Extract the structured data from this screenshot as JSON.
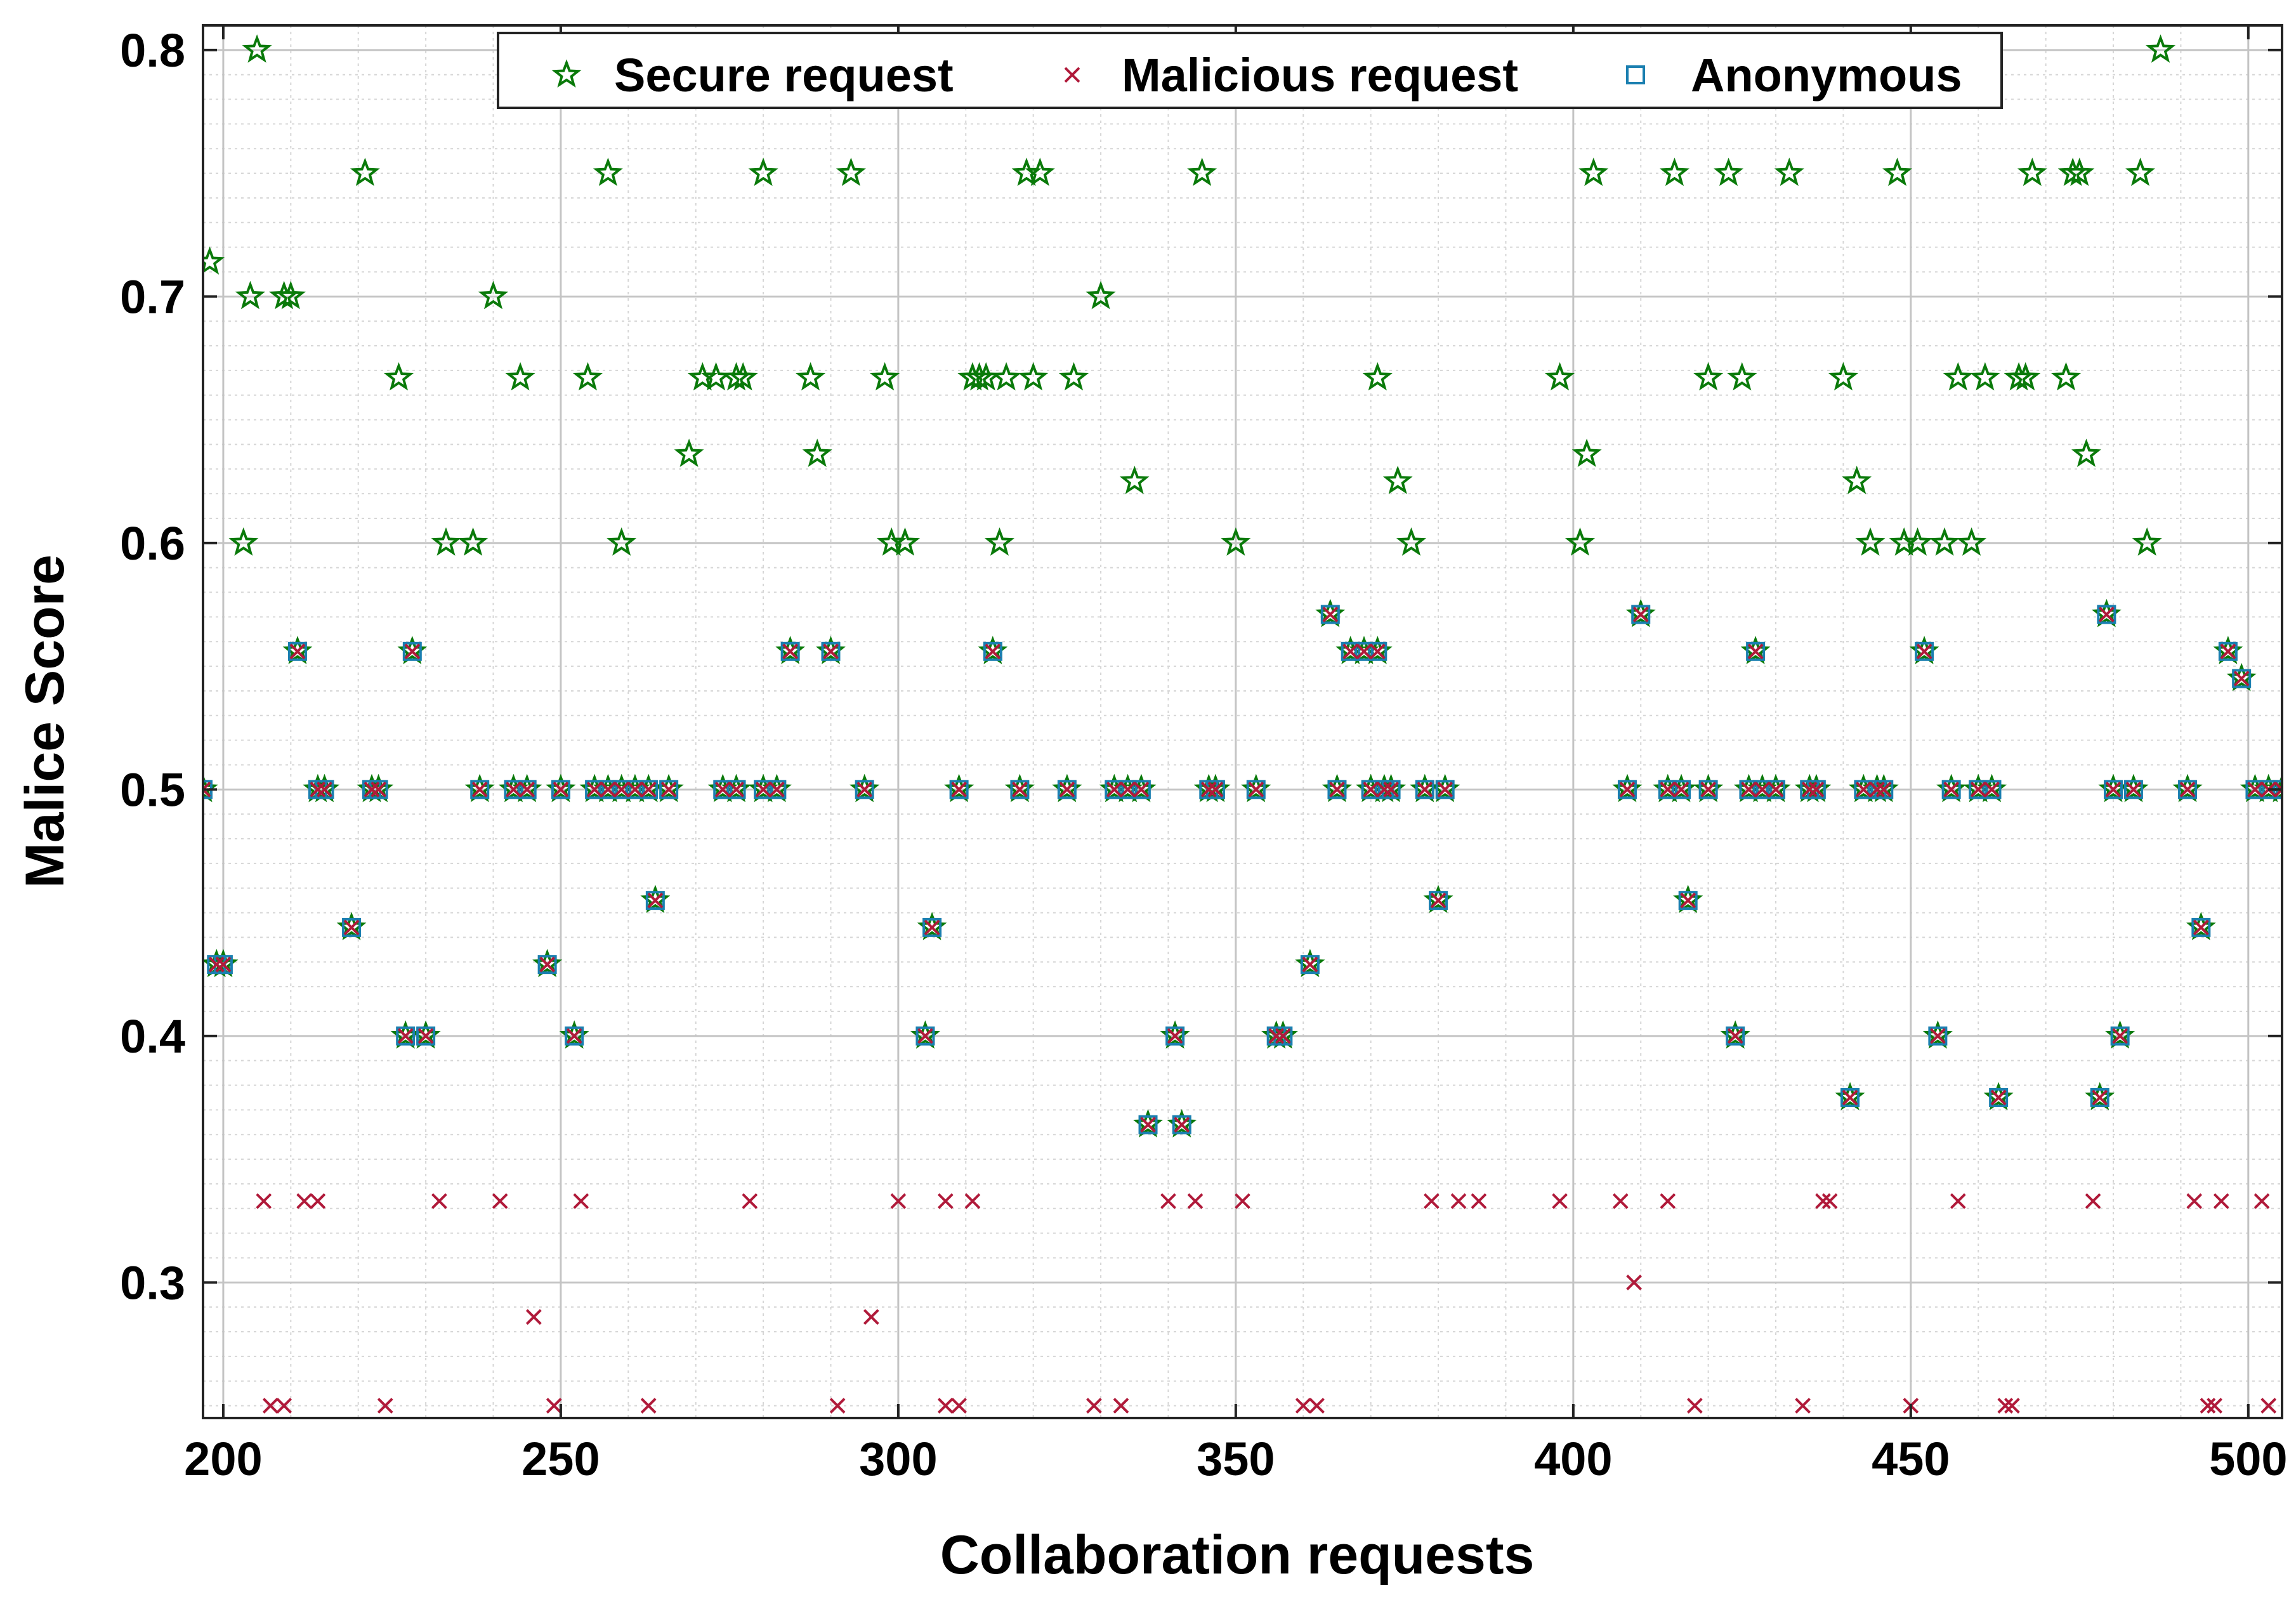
{
  "chart_data": {
    "type": "scatter",
    "title": "",
    "xlabel": "Collaboration requests",
    "ylabel": "Malice Score",
    "xlim": [
      197,
      505
    ],
    "ylim": [
      0.245,
      0.81
    ],
    "xticks": [
      200,
      250,
      300,
      350,
      400,
      450,
      500
    ],
    "yticks": [
      0.3,
      0.4,
      0.5,
      0.6,
      0.7,
      0.8
    ],
    "xtick_labels": [
      "200",
      "250",
      "300",
      "350",
      "400",
      "450",
      "500"
    ],
    "ytick_labels": [
      "0.3",
      "0.4",
      "0.5",
      "0.6",
      "0.7",
      "0.8"
    ],
    "grid": true,
    "legend_position": "top-center",
    "colors": {
      "secure": "#0a7a0a",
      "malicious": "#b01a3a",
      "anonymous": "#1a7fb0"
    },
    "series": [
      {
        "name": "Secure request",
        "marker": "star",
        "points": [
          [
            198,
            0.714
          ],
          [
            204,
            0.7
          ],
          [
            205,
            0.8
          ],
          [
            203,
            0.6
          ],
          [
            209,
            0.7
          ],
          [
            210,
            0.7
          ],
          [
            221,
            0.75
          ],
          [
            226,
            0.667
          ],
          [
            233,
            0.6
          ],
          [
            237,
            0.6
          ],
          [
            240,
            0.7
          ],
          [
            244,
            0.667
          ],
          [
            254,
            0.667
          ],
          [
            257,
            0.75
          ],
          [
            259,
            0.6
          ],
          [
            269,
            0.636
          ],
          [
            271,
            0.667
          ],
          [
            273,
            0.667
          ],
          [
            276,
            0.667
          ],
          [
            277,
            0.667
          ],
          [
            280,
            0.75
          ],
          [
            287,
            0.667
          ],
          [
            288,
            0.636
          ],
          [
            293,
            0.75
          ],
          [
            298,
            0.667
          ],
          [
            299,
            0.6
          ],
          [
            301,
            0.6
          ],
          [
            311,
            0.667
          ],
          [
            312,
            0.667
          ],
          [
            313,
            0.667
          ],
          [
            315,
            0.6
          ],
          [
            316,
            0.667
          ],
          [
            319,
            0.75
          ],
          [
            320,
            0.667
          ],
          [
            321,
            0.75
          ],
          [
            326,
            0.667
          ],
          [
            330,
            0.7
          ],
          [
            335,
            0.625
          ],
          [
            345,
            0.75
          ],
          [
            350,
            0.6
          ],
          [
            371,
            0.667
          ],
          [
            374,
            0.625
          ],
          [
            376,
            0.6
          ],
          [
            398,
            0.667
          ],
          [
            401,
            0.6
          ],
          [
            402,
            0.636
          ],
          [
            403,
            0.75
          ],
          [
            415,
            0.75
          ],
          [
            420,
            0.667
          ],
          [
            423,
            0.75
          ],
          [
            425,
            0.667
          ],
          [
            432,
            0.75
          ],
          [
            440,
            0.667
          ],
          [
            442,
            0.625
          ],
          [
            444,
            0.6
          ],
          [
            448,
            0.75
          ],
          [
            449,
            0.6
          ],
          [
            451,
            0.6
          ],
          [
            455,
            0.6
          ],
          [
            457,
            0.667
          ],
          [
            459,
            0.6
          ],
          [
            461,
            0.667
          ],
          [
            466,
            0.667
          ],
          [
            467,
            0.667
          ],
          [
            468,
            0.75
          ],
          [
            473,
            0.667
          ],
          [
            474,
            0.75
          ],
          [
            475,
            0.75
          ],
          [
            476,
            0.636
          ],
          [
            484,
            0.75
          ],
          [
            485,
            0.6
          ],
          [
            487,
            0.8
          ]
        ]
      },
      {
        "name": "Malicious request",
        "marker": "x",
        "points": [
          [
            206,
            0.333
          ],
          [
            207,
            0.25
          ],
          [
            209,
            0.25
          ],
          [
            212,
            0.333
          ],
          [
            214,
            0.333
          ],
          [
            224,
            0.25
          ],
          [
            232,
            0.333
          ],
          [
            241,
            0.333
          ],
          [
            246,
            0.286
          ],
          [
            249,
            0.25
          ],
          [
            253,
            0.333
          ],
          [
            263,
            0.25
          ],
          [
            278,
            0.333
          ],
          [
            291,
            0.25
          ],
          [
            296,
            0.286
          ],
          [
            300,
            0.333
          ],
          [
            307,
            0.333
          ],
          [
            307,
            0.25
          ],
          [
            309,
            0.25
          ],
          [
            311,
            0.333
          ],
          [
            329,
            0.25
          ],
          [
            333,
            0.25
          ],
          [
            340,
            0.333
          ],
          [
            344,
            0.333
          ],
          [
            351,
            0.333
          ],
          [
            360,
            0.25
          ],
          [
            362,
            0.25
          ],
          [
            379,
            0.333
          ],
          [
            383,
            0.333
          ],
          [
            386,
            0.333
          ],
          [
            398,
            0.333
          ],
          [
            407,
            0.333
          ],
          [
            409,
            0.3
          ],
          [
            414,
            0.333
          ],
          [
            418,
            0.25
          ],
          [
            434,
            0.25
          ],
          [
            437,
            0.333
          ],
          [
            438,
            0.333
          ],
          [
            450,
            0.25
          ],
          [
            457,
            0.333
          ],
          [
            464,
            0.25
          ],
          [
            465,
            0.25
          ],
          [
            477,
            0.333
          ],
          [
            492,
            0.333
          ],
          [
            494,
            0.25
          ],
          [
            495,
            0.25
          ],
          [
            496,
            0.333
          ],
          [
            502,
            0.333
          ],
          [
            503,
            0.25
          ]
        ]
      },
      {
        "name": "Anonymous",
        "marker": "square",
        "points": [
          [
            197,
            0.5
          ],
          [
            199,
            0.429
          ],
          [
            200,
            0.429
          ],
          [
            211,
            0.556
          ],
          [
            214,
            0.5
          ],
          [
            215,
            0.5
          ],
          [
            219,
            0.444
          ],
          [
            222,
            0.5
          ],
          [
            223,
            0.5
          ],
          [
            227,
            0.4
          ],
          [
            228,
            0.556
          ],
          [
            230,
            0.4
          ],
          [
            238,
            0.5
          ],
          [
            243,
            0.5
          ],
          [
            245,
            0.5
          ],
          [
            248,
            0.429
          ],
          [
            250,
            0.5
          ],
          [
            252,
            0.4
          ],
          [
            255,
            0.5
          ],
          [
            257,
            0.5
          ],
          [
            259,
            0.5
          ],
          [
            261,
            0.5
          ],
          [
            263,
            0.5
          ],
          [
            264,
            0.455
          ],
          [
            266,
            0.5
          ],
          [
            274,
            0.5
          ],
          [
            276,
            0.5
          ],
          [
            280,
            0.5
          ],
          [
            282,
            0.5
          ],
          [
            284,
            0.556
          ],
          [
            290,
            0.556
          ],
          [
            295,
            0.5
          ],
          [
            304,
            0.4
          ],
          [
            305,
            0.444
          ],
          [
            309,
            0.5
          ],
          [
            314,
            0.556
          ],
          [
            318,
            0.5
          ],
          [
            325,
            0.5
          ],
          [
            332,
            0.5
          ],
          [
            334,
            0.5
          ],
          [
            336,
            0.5
          ],
          [
            337,
            0.364
          ],
          [
            341,
            0.4
          ],
          [
            342,
            0.364
          ],
          [
            346,
            0.5
          ],
          [
            347,
            0.5
          ],
          [
            353,
            0.5
          ],
          [
            356,
            0.4
          ],
          [
            357,
            0.4
          ],
          [
            361,
            0.429
          ],
          [
            364,
            0.571
          ],
          [
            365,
            0.5
          ],
          [
            367,
            0.556
          ],
          [
            369,
            0.556
          ],
          [
            370,
            0.5
          ],
          [
            371,
            0.556
          ],
          [
            372,
            0.5
          ],
          [
            373,
            0.5
          ],
          [
            378,
            0.5
          ],
          [
            380,
            0.455
          ],
          [
            381,
            0.5
          ],
          [
            408,
            0.5
          ],
          [
            410,
            0.571
          ],
          [
            414,
            0.5
          ],
          [
            416,
            0.5
          ],
          [
            417,
            0.455
          ],
          [
            420,
            0.5
          ],
          [
            424,
            0.4
          ],
          [
            426,
            0.5
          ],
          [
            427,
            0.556
          ],
          [
            428,
            0.5
          ],
          [
            430,
            0.5
          ],
          [
            435,
            0.5
          ],
          [
            436,
            0.5
          ],
          [
            441,
            0.375
          ],
          [
            443,
            0.5
          ],
          [
            445,
            0.5
          ],
          [
            446,
            0.5
          ],
          [
            452,
            0.556
          ],
          [
            454,
            0.4
          ],
          [
            456,
            0.5
          ],
          [
            460,
            0.5
          ],
          [
            462,
            0.5
          ],
          [
            463,
            0.375
          ],
          [
            478,
            0.375
          ],
          [
            479,
            0.571
          ],
          [
            480,
            0.5
          ],
          [
            481,
            0.4
          ],
          [
            483,
            0.5
          ],
          [
            491,
            0.5
          ],
          [
            493,
            0.444
          ],
          [
            497,
            0.556
          ],
          [
            499,
            0.545
          ],
          [
            501,
            0.5
          ],
          [
            503,
            0.5
          ],
          [
            505,
            0.5
          ]
        ]
      }
    ]
  }
}
